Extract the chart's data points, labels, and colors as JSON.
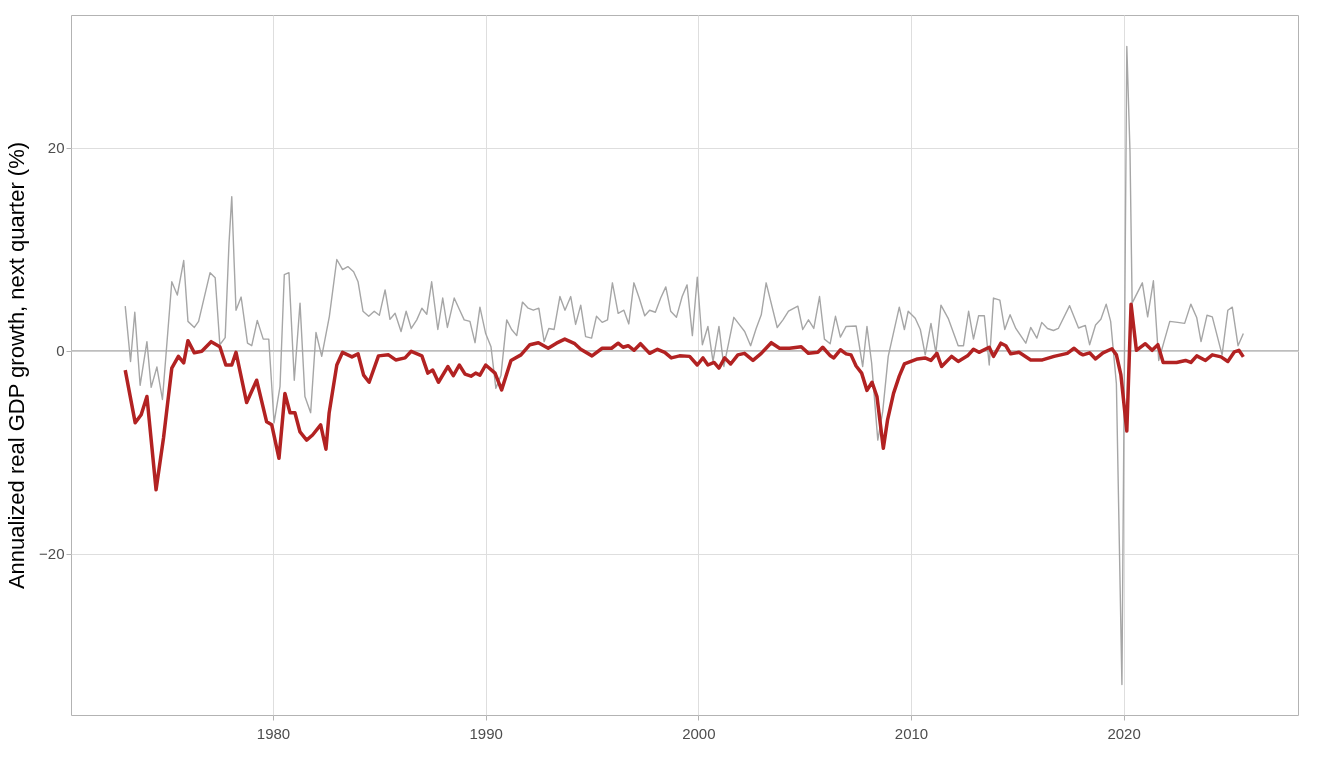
{
  "chart_data": {
    "type": "line",
    "ylabel": "Annualized real GDP growth, next quarter (%)",
    "xlim": [
      1970.5,
      2028.2
    ],
    "xticks": [
      1980,
      1990,
      2000,
      2010,
      2020
    ],
    "ylim": [
      -35.9,
      33.1
    ],
    "yticks": [
      -20,
      0,
      20
    ],
    "grid": true,
    "line_style": "solid",
    "ref_lines": [
      {
        "axis": "y",
        "value": 0,
        "color": "#bebebe"
      }
    ],
    "series": [
      {
        "color": "#a6a6a6",
        "x": [
          1973.05,
          1973.3,
          1973.5,
          1973.75,
          1974.07,
          1974.27,
          1974.54,
          1974.8,
          1975.24,
          1975.5,
          1975.8,
          1976.0,
          1976.3,
          1976.5,
          1977.04,
          1977.28,
          1977.5,
          1977.75,
          1977.93,
          1978.06,
          1978.17,
          1978.26,
          1978.5,
          1978.8,
          1979.0,
          1979.26,
          1979.54,
          1979.8,
          1980.05,
          1980.33,
          1980.53,
          1980.75,
          1981.0,
          1981.27,
          1981.5,
          1981.77,
          1982.02,
          1982.29,
          1982.65,
          1983.0,
          1983.27,
          1983.52,
          1983.79,
          1984.0,
          1984.23,
          1984.5,
          1984.76,
          1985.0,
          1985.27,
          1985.5,
          1985.74,
          1986.02,
          1986.26,
          1986.5,
          1986.76,
          1987.0,
          1987.23,
          1987.46,
          1987.75,
          1987.98,
          1988.2,
          1988.52,
          1988.76,
          1988.99,
          1989.26,
          1989.5,
          1989.73,
          1990.0,
          1990.25,
          1990.48,
          1990.72,
          1990.99,
          1991.22,
          1991.46,
          1991.73,
          1992.0,
          1992.24,
          1992.5,
          1992.75,
          1992.97,
          1993.22,
          1993.49,
          1993.73,
          1994.0,
          1994.23,
          1994.47,
          1994.7,
          1994.98,
          1995.21,
          1995.48,
          1995.73,
          1995.96,
          1996.23,
          1996.5,
          1996.73,
          1996.97,
          1997.22,
          1997.48,
          1997.71,
          1997.98,
          1998.23,
          1998.47,
          1998.7,
          1998.97,
          1999.24,
          1999.47,
          1999.72,
          1999.95,
          2000.19,
          2000.45,
          2000.69,
          2000.97,
          2001.2,
          2001.67,
          2001.94,
          2002.18,
          2002.46,
          2002.72,
          2002.96,
          2003.19,
          2003.71,
          2003.98,
          2004.24,
          2004.68,
          2004.91,
          2005.18,
          2005.43,
          2005.7,
          2005.93,
          2006.2,
          2006.45,
          2006.68,
          2006.95,
          2007.42,
          2007.73,
          2007.93,
          2008.15,
          2008.44,
          2008.67,
          2008.93,
          2009.45,
          2009.69,
          2009.87,
          2010.2,
          2010.44,
          2010.67,
          2010.94,
          2011.17,
          2011.41,
          2011.75,
          2012.22,
          2012.47,
          2012.71,
          2012.94,
          2013.18,
          2013.45,
          2013.68,
          2013.88,
          2014.18,
          2014.41,
          2014.66,
          2014.93,
          2015.4,
          2015.63,
          2015.92,
          2016.15,
          2016.42,
          2016.7,
          2016.93,
          2017.46,
          2017.88,
          2018.2,
          2018.4,
          2018.68,
          2018.93,
          2019.18,
          2019.39,
          2019.66,
          2019.92,
          2020.15,
          2020.3,
          2020.4,
          2020.88,
          2021.13,
          2021.4,
          2021.65,
          2021.9,
          2022.17,
          2022.54,
          2022.87,
          2023.16,
          2023.44,
          2023.64,
          2023.92,
          2024.17,
          2024.63,
          2024.9,
          2025.11,
          2025.38,
          2025.63
        ],
        "values": [
          4.4,
          -1.05,
          3.8,
          -3.4,
          0.9,
          -3.6,
          -1.6,
          -4.8,
          6.8,
          5.5,
          8.9,
          2.9,
          2.3,
          2.9,
          7.7,
          7.2,
          0.6,
          1.3,
          10.6,
          15.2,
          8.8,
          4.0,
          5.3,
          0.75,
          0.5,
          3.0,
          1.15,
          1.15,
          -7.1,
          -3.5,
          7.5,
          7.7,
          -2.9,
          4.7,
          -4.5,
          -6.1,
          1.8,
          -0.55,
          3.4,
          9.0,
          8.0,
          8.3,
          7.8,
          6.8,
          3.9,
          3.4,
          3.9,
          3.5,
          6.0,
          3.1,
          3.7,
          1.9,
          3.9,
          2.2,
          3.05,
          4.2,
          3.6,
          6.8,
          2.1,
          5.2,
          2.3,
          5.2,
          4.1,
          3.05,
          2.9,
          0.8,
          4.3,
          1.7,
          0.4,
          -3.7,
          -2.4,
          3.05,
          2.1,
          1.5,
          4.8,
          4.2,
          4.0,
          4.2,
          0.9,
          2.2,
          2.1,
          5.35,
          4.0,
          5.35,
          2.6,
          4.5,
          1.4,
          1.25,
          3.4,
          2.8,
          3.05,
          6.7,
          3.7,
          4.0,
          2.65,
          6.7,
          5.2,
          3.45,
          4.0,
          3.8,
          5.2,
          6.3,
          3.9,
          3.3,
          5.35,
          6.5,
          1.5,
          7.25,
          0.6,
          2.4,
          -1.05,
          2.4,
          -1.55,
          3.3,
          2.55,
          1.9,
          0.5,
          2.2,
          3.55,
          6.7,
          2.3,
          3.05,
          3.9,
          4.4,
          2.1,
          3.05,
          2.2,
          5.35,
          1.15,
          0.7,
          3.4,
          1.35,
          2.4,
          2.45,
          -1.55,
          2.4,
          -1.2,
          -8.8,
          -6.0,
          -0.55,
          4.3,
          2.1,
          3.9,
          3.2,
          2.1,
          -0.4,
          2.7,
          -0.2,
          4.5,
          3.2,
          0.5,
          0.5,
          3.9,
          1.15,
          3.45,
          3.45,
          -1.4,
          5.2,
          5.0,
          2.1,
          3.55,
          2.2,
          0.75,
          2.3,
          1.25,
          2.8,
          2.2,
          2.0,
          2.2,
          4.45,
          2.25,
          2.5,
          0.6,
          2.55,
          3.1,
          4.6,
          2.9,
          -3.25,
          -32.9,
          30.0,
          19.6,
          4.7,
          6.7,
          3.35,
          6.9,
          -0.95,
          0.9,
          2.9,
          2.8,
          2.7,
          4.6,
          3.25,
          0.9,
          3.5,
          3.35,
          -0.4,
          4.0,
          4.3,
          0.5,
          1.7
        ]
      },
      {
        "color": "#b22222",
        "x": [
          1973.05,
          1973.52,
          1973.8,
          1974.07,
          1974.5,
          1974.85,
          1975.24,
          1975.55,
          1975.8,
          1976.0,
          1976.3,
          1976.65,
          1977.09,
          1977.5,
          1977.78,
          1978.06,
          1978.26,
          1978.76,
          1979.23,
          1979.7,
          1979.94,
          1980.28,
          1980.56,
          1980.8,
          1981.03,
          1981.27,
          1981.58,
          1981.86,
          1982.24,
          1982.49,
          1982.64,
          1983.0,
          1983.27,
          1983.71,
          1984.0,
          1984.26,
          1984.52,
          1984.96,
          1985.43,
          1985.77,
          1986.21,
          1986.5,
          1987.0,
          1987.28,
          1987.51,
          1987.78,
          1988.22,
          1988.48,
          1988.76,
          1989.03,
          1989.31,
          1989.53,
          1989.73,
          1990.0,
          1990.44,
          1990.75,
          1991.19,
          1991.66,
          1992.08,
          1992.48,
          1992.94,
          1993.33,
          1993.72,
          1994.19,
          1994.47,
          1995.0,
          1995.48,
          1995.92,
          1996.23,
          1996.46,
          1996.7,
          1996.98,
          1997.28,
          1997.71,
          1998.08,
          1998.42,
          1998.73,
          1999.12,
          1999.59,
          1999.95,
          2000.22,
          2000.45,
          2000.74,
          2000.97,
          2001.24,
          2001.52,
          2001.86,
          2002.17,
          2002.57,
          2002.96,
          2003.43,
          2003.82,
          2004.29,
          2004.84,
          2005.18,
          2005.62,
          2005.85,
          2006.21,
          2006.37,
          2006.68,
          2006.95,
          2007.18,
          2007.42,
          2007.68,
          2007.93,
          2008.17,
          2008.4,
          2008.7,
          2008.9,
          2009.18,
          2009.45,
          2009.69,
          2010.0,
          2010.31,
          2010.66,
          2010.94,
          2011.22,
          2011.44,
          2011.91,
          2012.22,
          2012.66,
          2012.94,
          2013.2,
          2013.68,
          2013.88,
          2014.23,
          2014.46,
          2014.69,
          2015.08,
          2015.63,
          2016.18,
          2016.73,
          2017.35,
          2017.67,
          2017.95,
          2018.09,
          2018.4,
          2018.68,
          2019.03,
          2019.45,
          2019.66,
          2019.87,
          2020.15,
          2020.35,
          2020.6,
          2021.02,
          2021.34,
          2021.61,
          2021.86,
          2022.49,
          2022.91,
          2023.16,
          2023.44,
          2023.85,
          2024.17,
          2024.58,
          2024.9,
          2025.21,
          2025.42,
          2025.63
        ],
        "values": [
          -1.9,
          -7.1,
          -6.3,
          -4.5,
          -13.7,
          -8.6,
          -1.7,
          -0.55,
          -1.2,
          1.0,
          -0.2,
          -0.05,
          0.9,
          0.4,
          -1.4,
          -1.4,
          -0.15,
          -5.1,
          -2.9,
          -7.0,
          -7.3,
          -10.6,
          -4.2,
          -6.1,
          -6.1,
          -8.0,
          -8.8,
          -8.3,
          -7.3,
          -9.7,
          -6.1,
          -1.4,
          -0.15,
          -0.6,
          -0.3,
          -2.4,
          -3.1,
          -0.5,
          -0.4,
          -0.9,
          -0.7,
          -0.05,
          -0.5,
          -2.2,
          -1.9,
          -3.1,
          -1.55,
          -2.45,
          -1.4,
          -2.3,
          -2.5,
          -2.2,
          -2.4,
          -1.4,
          -2.2,
          -3.85,
          -0.95,
          -0.4,
          0.6,
          0.8,
          0.25,
          0.75,
          1.15,
          0.7,
          0.15,
          -0.5,
          0.25,
          0.25,
          0.75,
          0.35,
          0.5,
          0.05,
          0.7,
          -0.25,
          0.15,
          -0.15,
          -0.7,
          -0.5,
          -0.55,
          -1.4,
          -0.7,
          -1.4,
          -1.15,
          -1.7,
          -0.7,
          -1.3,
          -0.4,
          -0.25,
          -0.95,
          -0.25,
          0.8,
          0.25,
          0.25,
          0.4,
          -0.25,
          -0.15,
          0.35,
          -0.5,
          -0.7,
          0.1,
          -0.3,
          -0.4,
          -1.5,
          -2.2,
          -3.9,
          -3.1,
          -4.5,
          -9.6,
          -6.8,
          -4.2,
          -2.5,
          -1.3,
          -1.05,
          -0.8,
          -0.7,
          -0.95,
          -0.25,
          -1.55,
          -0.55,
          -1.05,
          -0.5,
          0.15,
          -0.15,
          0.35,
          -0.55,
          0.75,
          0.5,
          -0.3,
          -0.15,
          -0.9,
          -0.9,
          -0.55,
          -0.25,
          0.25,
          -0.25,
          -0.4,
          -0.2,
          -0.8,
          -0.2,
          0.2,
          -0.4,
          -2.35,
          -7.9,
          4.6,
          0.05,
          0.7,
          0.05,
          0.6,
          -1.15,
          -1.15,
          -0.95,
          -1.15,
          -0.5,
          -0.95,
          -0.4,
          -0.6,
          -1.05,
          -0.1,
          0.05,
          -0.6
        ]
      }
    ]
  }
}
